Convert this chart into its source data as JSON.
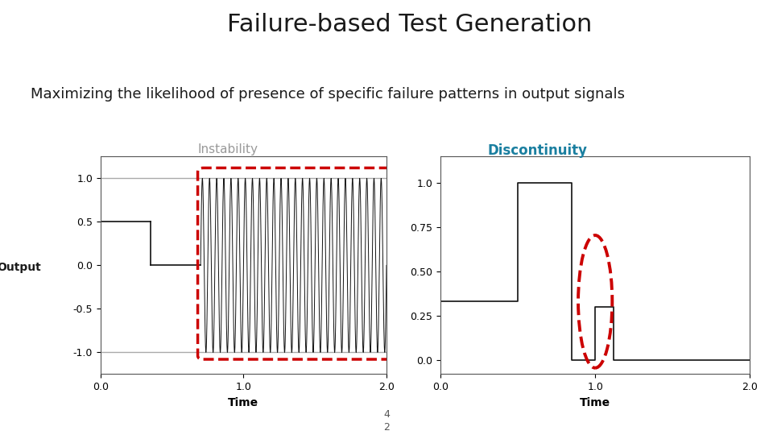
{
  "title": "Failure-based Test Generation",
  "subtitle": "Maximizing the likelihood of presence of specific failure patterns in output signals",
  "label_instability": "Instability",
  "label_discontinuity": "Discontinuity",
  "output_label": "Output",
  "page_num_top": "4",
  "page_num_bot": "2",
  "title_fontsize": 22,
  "subtitle_fontsize": 13,
  "label_fontsize": 11,
  "instability_color": "#999999",
  "discontinuity_color": "#1a7fa0",
  "background_color": "#ffffff",
  "dashed_color": "#cc0000",
  "signal_color": "#111111",
  "hline_color": "#aaaaaa"
}
